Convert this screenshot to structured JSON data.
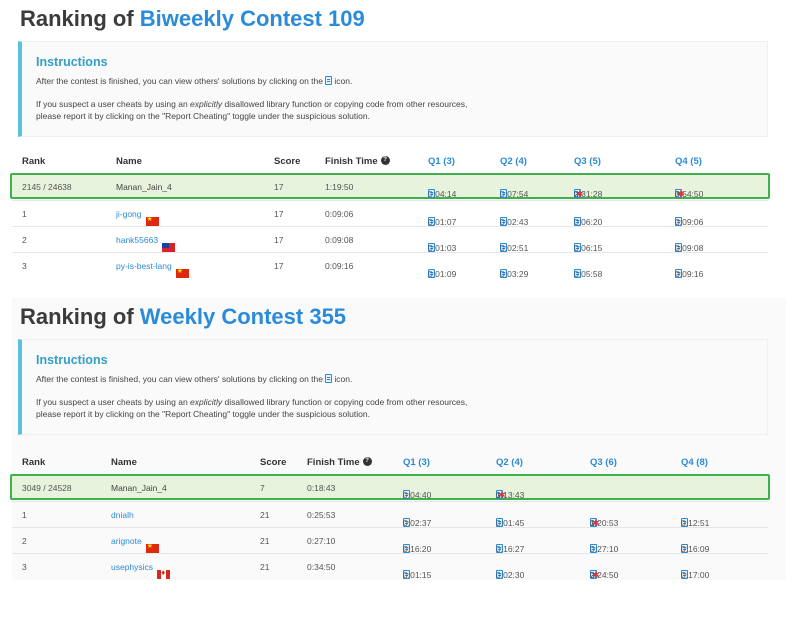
{
  "icons": {
    "solution": "document-icon",
    "bug": "bug-icon",
    "clock": "question-circle-icon"
  },
  "colors": {
    "accent": "#2a8bd8",
    "highlight_border": "#3db24a",
    "highlight_bg": "#e7f3dc",
    "bug": "#d9363e"
  },
  "instructions": {
    "title": "Instructions",
    "line1_before": "After the contest is finished, you can view others' solutions by clicking on the",
    "line1_after": "icon.",
    "line2_before": "If you suspect a user cheats by using an",
    "line2_em": "explicitly",
    "line2_after": "disallowed library function or copying code from other resources,",
    "line3": "please report it by clicking on the \"Report Cheating\" toggle under the suspicious solution."
  },
  "panel1": {
    "title_prefix": "Ranking of",
    "title_contest": "Biweekly Contest 109",
    "headers": {
      "rank": "Rank",
      "name": "Name",
      "score": "Score",
      "finish": "Finish Time",
      "q1": "Q1 (3)",
      "q2": "Q2 (4)",
      "q3": "Q3 (5)",
      "q4": "Q4 (5)"
    },
    "rows": [
      {
        "rank": "2145 / 24638",
        "name": "Manan_Jain_4",
        "score": "17",
        "finish": "1:19:50",
        "q1": "0:04:14",
        "q2": "0:07:54",
        "q3": "0:31:28",
        "q3_bugs": "2",
        "q4": "0:54:50",
        "q4_bugs": "3"
      },
      {
        "rank": "1",
        "name": "ji-gong",
        "score": "17",
        "finish": "0:09:06",
        "q1": "0:01:07",
        "q2": "0:02:43",
        "q3": "0:06:20",
        "q4": "0:09:06"
      },
      {
        "rank": "2",
        "name": "hank55663",
        "score": "17",
        "finish": "0:09:08",
        "q1": "0:01:03",
        "q2": "0:02:51",
        "q3": "0:06:15",
        "q4": "0:09:08"
      },
      {
        "rank": "3",
        "name": "py-is-best-lang",
        "score": "17",
        "finish": "0:09:16",
        "q1": "0:01:09",
        "q2": "0:03:29",
        "q3": "0:05:58",
        "q4": "0:09:16"
      }
    ]
  },
  "panel2": {
    "title_prefix": "Ranking of",
    "title_contest": "Weekly Contest 355",
    "headers": {
      "rank": "Rank",
      "name": "Name",
      "score": "Score",
      "finish": "Finish Time",
      "q1": "Q1 (3)",
      "q2": "Q2 (4)",
      "q3": "Q3 (6)",
      "q4": "Q4 (8)"
    },
    "rows": [
      {
        "rank": "3049 / 24528",
        "name": "Manan_Jain_4",
        "score": "7",
        "finish": "0:18:43",
        "q1": "0:04:40",
        "q2": "0:13:43",
        "q2_bugs": "1"
      },
      {
        "rank": "1",
        "name": "dnialh",
        "score": "21",
        "finish": "0:25:53",
        "q1": "0:02:37",
        "q2": "0:01:45",
        "q3": "0:20:53",
        "q3_bugs": "1",
        "q4": "0:12:51"
      },
      {
        "rank": "2",
        "name": "arignote",
        "score": "21",
        "finish": "0:27:10",
        "q1": "0:16:20",
        "q2": "0:16:27",
        "q3": "0:27:10",
        "q4": "0:16:09"
      },
      {
        "rank": "3",
        "name": "usephysics",
        "score": "21",
        "finish": "0:34:50",
        "q1": "0:01:15",
        "q2": "0:02:30",
        "q3": "0:24:50",
        "q3_bugs": "2",
        "q4": "0:17:00"
      }
    ]
  }
}
